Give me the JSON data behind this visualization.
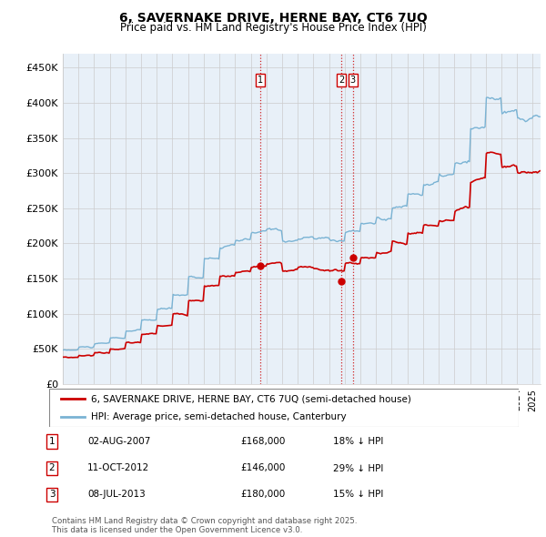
{
  "title": "6, SAVERNAKE DRIVE, HERNE BAY, CT6 7UQ",
  "subtitle": "Price paid vs. HM Land Registry's House Price Index (HPI)",
  "hpi_label": "HPI: Average price, semi-detached house, Canterbury",
  "price_label": "6, SAVERNAKE DRIVE, HERNE BAY, CT6 7UQ (semi-detached house)",
  "hpi_color": "#7ab3d4",
  "price_color": "#cc0000",
  "vline_color": "#cc0000",
  "plot_bg_color": "#e8f0f8",
  "ylim": [
    0,
    470000
  ],
  "yticks": [
    0,
    50000,
    100000,
    150000,
    200000,
    250000,
    300000,
    350000,
    400000,
    450000
  ],
  "ytick_labels": [
    "£0",
    "£50K",
    "£100K",
    "£150K",
    "£200K",
    "£250K",
    "£300K",
    "£350K",
    "£400K",
    "£450K"
  ],
  "transactions": [
    {
      "date_str": "02-AUG-2007",
      "date_x": 2007.583,
      "price": 168000,
      "label": "1",
      "pct": "18% ↓ HPI"
    },
    {
      "date_str": "11-OCT-2012",
      "date_x": 2012.783,
      "price": 146000,
      "label": "2",
      "pct": "29% ↓ HPI"
    },
    {
      "date_str": "08-JUL-2013",
      "date_x": 2013.517,
      "price": 180000,
      "label": "3",
      "pct": "15% ↓ HPI"
    }
  ],
  "copyright_text": "Contains HM Land Registry data © Crown copyright and database right 2025.\nThis data is licensed under the Open Government Licence v3.0.",
  "grid_color": "#cccccc",
  "xlim_left": 1995.0,
  "xlim_right": 2025.5
}
